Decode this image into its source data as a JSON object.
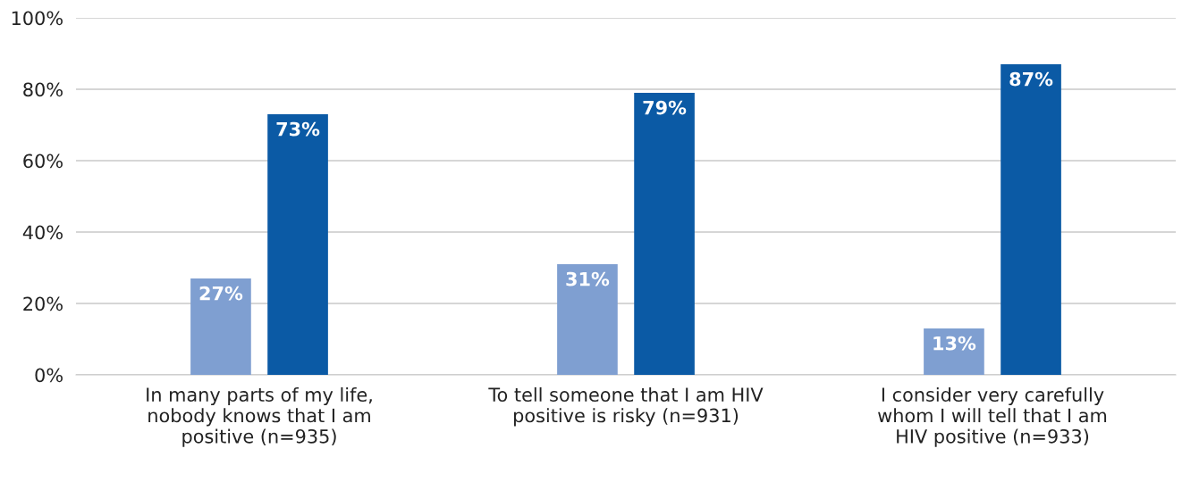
{
  "chart_data": {
    "type": "bar",
    "categories": [
      "In many parts of my life, nobody knows that I am positive (n=935)",
      "To tell someone that I am HIV positive is risky (n=931)",
      "I consider very carefully whom I will tell that I am HIV positive (n=933)"
    ],
    "series": [
      {
        "color": "#7f9fd1",
        "values": [
          27,
          31,
          13
        ],
        "value_labels": [
          "27%",
          "31%",
          "13%"
        ]
      },
      {
        "color": "#0b5aa5",
        "values": [
          73,
          79,
          87
        ],
        "value_labels": [
          "73%",
          "79%",
          "87%"
        ]
      }
    ],
    "ylim": [
      0,
      100
    ],
    "yticks": [
      {
        "value": 0,
        "label": "0%"
      },
      {
        "value": 20,
        "label": "20%"
      },
      {
        "value": 40,
        "label": "40%"
      },
      {
        "value": 60,
        "label": "60%"
      },
      {
        "value": 80,
        "label": "80%"
      },
      {
        "value": 100,
        "label": "100%"
      }
    ],
    "grid": "y",
    "legend": false
  }
}
